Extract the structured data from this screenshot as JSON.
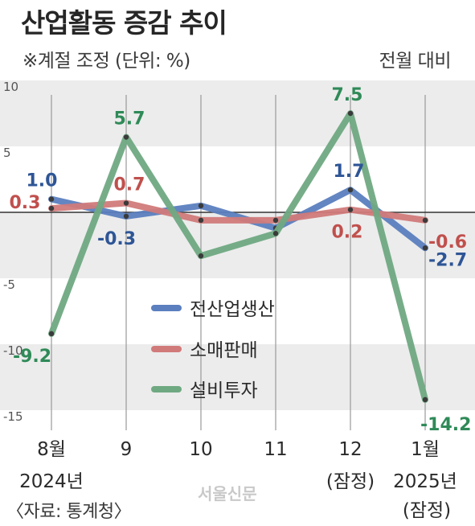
{
  "header": {
    "title": "산업활동 증감 추이",
    "note": "※계절 조정  (단위: %)",
    "comparison": "전월 대비"
  },
  "footer": {
    "source": "〈자료: 통계청〉",
    "credit": "서울신문"
  },
  "chart_data": {
    "type": "line",
    "title": "산업활동 증감 추이",
    "ylim": [
      -15,
      10
    ],
    "yticks": [
      10,
      5,
      -5,
      -10,
      -15
    ],
    "grid": "alternating horizontal bands",
    "legend_placement": "center",
    "categories": [
      {
        "main": "8월",
        "sub": "2024년"
      },
      {
        "main": "9",
        "sub": ""
      },
      {
        "main": "10",
        "sub": ""
      },
      {
        "main": "11",
        "sub": ""
      },
      {
        "main": "12",
        "sub": "(잠정)"
      },
      {
        "main": "1월",
        "sub": "2025년",
        "sub2": "(잠정)"
      }
    ],
    "series": [
      {
        "name": "전산업생산",
        "color": "#5b7fbf",
        "label_color": "#2e5596",
        "values": [
          1.0,
          -0.3,
          0.5,
          -1.2,
          1.7,
          -2.7
        ],
        "labels": [
          "1.0",
          "-0.3",
          "",
          "",
          "1.7",
          "-2.7"
        ]
      },
      {
        "name": "소매판매",
        "color": "#d17a7a",
        "label_color": "#c0504d",
        "values": [
          0.3,
          0.7,
          -0.6,
          -0.6,
          0.2,
          -0.6
        ],
        "labels": [
          "0.3",
          "0.7",
          "",
          "",
          "0.2",
          "-0.6"
        ]
      },
      {
        "name": "설비투자",
        "color": "#6fa982",
        "label_color": "#2f8a58",
        "values": [
          -9.2,
          5.7,
          -3.3,
          -1.6,
          7.5,
          -14.2
        ],
        "labels": [
          "-9.2",
          "5.7",
          "",
          "",
          "7.5",
          "-14.2"
        ]
      }
    ]
  }
}
